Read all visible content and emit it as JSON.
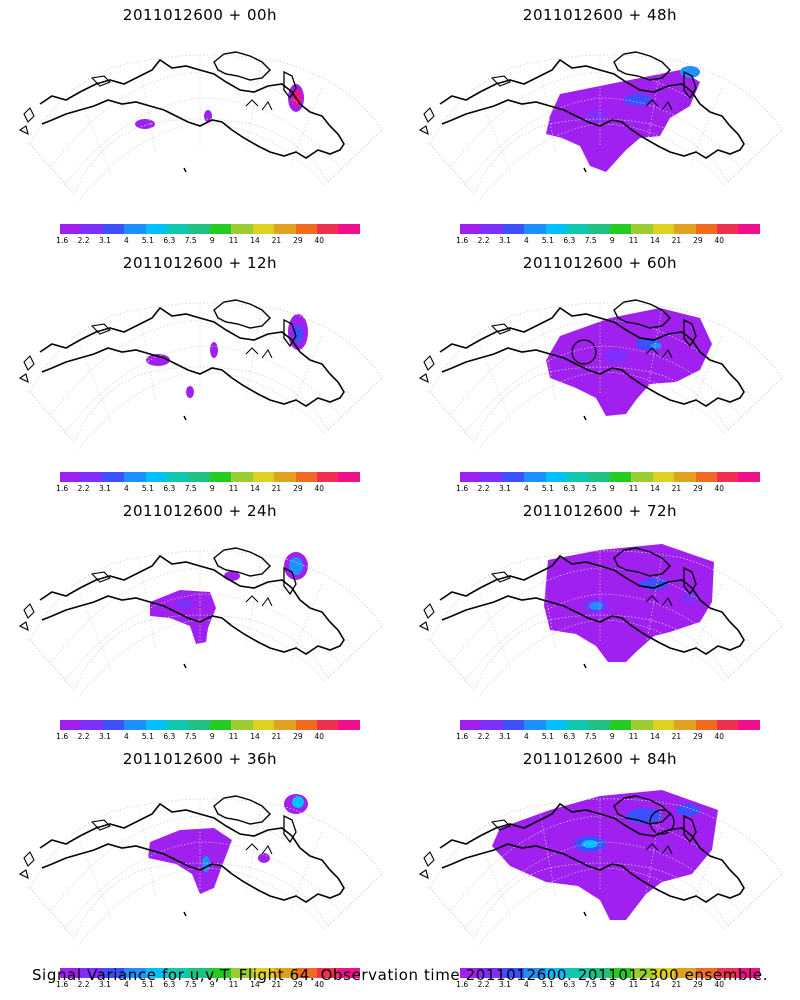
{
  "panels": [
    {
      "title": "2011012600 + 00h"
    },
    {
      "title": "2011012600 + 48h"
    },
    {
      "title": "2011012600 + 12h"
    },
    {
      "title": "2011012600 + 60h"
    },
    {
      "title": "2011012600 + 24h"
    },
    {
      "title": "2011012600 + 72h"
    },
    {
      "title": "2011012600 + 36h"
    },
    {
      "title": "2011012600 + 84h"
    }
  ],
  "colorbar": {
    "labels": [
      "1.6",
      "2.2",
      "3.1",
      "4",
      "5.1",
      "6.3",
      "7.5",
      "9",
      "11",
      "14",
      "21",
      "29",
      "40"
    ],
    "colors": [
      "#a020f0",
      "#7f30ff",
      "#3c50ff",
      "#1e90ff",
      "#00bfff",
      "#10c8b0",
      "#20c080",
      "#22cc22",
      "#9acd32",
      "#e0d020",
      "#e0a020",
      "#f06a20",
      "#f03050",
      "#f0108c"
    ]
  },
  "footer": "Signal Variance for u,v,T. Flight 64. Observation time 2011012600. 2011012300 ensemble."
}
